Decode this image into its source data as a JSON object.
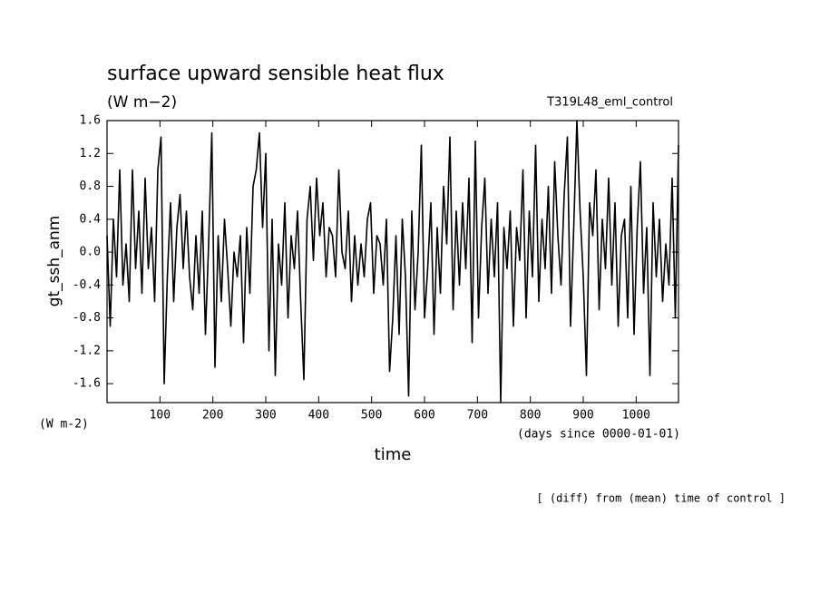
{
  "chart_data": {
    "type": "line",
    "title": "surface upward sensible heat flux",
    "subtitle": "(W m−2)",
    "run_label": "T319L48_eml_control",
    "y_label": "gt_ssh_anm",
    "y_unit": "(W m-2)",
    "x_unit": "(days since 0000-01-01)",
    "x_label": "time",
    "footnote": "[ (diff) from (mean) time of control ]",
    "color": "#000000",
    "xlim": [
      0,
      1080
    ],
    "ylim": [
      -1.83,
      1.6
    ],
    "xticks": [
      100,
      200,
      300,
      400,
      500,
      600,
      700,
      800,
      900,
      1000
    ],
    "yticks": [
      -1.6,
      -1.2,
      -0.8,
      -0.4,
      {
        "value": 0,
        "label": "0.0"
      },
      0.4,
      0.8,
      1.2,
      1.6
    ],
    "x": [
      0,
      6,
      12,
      18,
      24,
      30,
      36,
      42,
      48,
      54,
      60,
      66,
      72,
      78,
      84,
      90,
      96,
      102,
      108,
      114,
      120,
      126,
      132,
      138,
      144,
      150,
      156,
      162,
      168,
      174,
      180,
      186,
      192,
      198,
      204,
      210,
      216,
      222,
      228,
      234,
      240,
      246,
      252,
      258,
      264,
      270,
      276,
      282,
      288,
      294,
      300,
      306,
      312,
      318,
      324,
      330,
      336,
      342,
      348,
      354,
      360,
      366,
      372,
      378,
      384,
      390,
      396,
      402,
      408,
      414,
      420,
      426,
      432,
      438,
      444,
      450,
      456,
      462,
      468,
      474,
      480,
      486,
      492,
      498,
      504,
      510,
      516,
      522,
      528,
      534,
      540,
      546,
      552,
      558,
      564,
      570,
      576,
      582,
      588,
      594,
      600,
      606,
      612,
      618,
      624,
      630,
      636,
      642,
      648,
      654,
      660,
      666,
      672,
      678,
      684,
      690,
      696,
      702,
      708,
      714,
      720,
      726,
      732,
      738,
      744,
      750,
      756,
      762,
      768,
      774,
      780,
      786,
      792,
      798,
      804,
      810,
      816,
      822,
      828,
      834,
      840,
      846,
      852,
      858,
      864,
      870,
      876,
      882,
      888,
      894,
      900,
      906,
      912,
      918,
      924,
      930,
      936,
      942,
      948,
      954,
      960,
      966,
      972,
      978,
      984,
      990,
      996,
      1002,
      1008,
      1014,
      1020,
      1026,
      1032,
      1038,
      1044,
      1050,
      1056,
      1062,
      1068,
      1074,
      1080
    ],
    "values": [
      0.2,
      -0.9,
      0.4,
      -0.3,
      1.0,
      -0.4,
      0.1,
      -0.6,
      1.0,
      -0.2,
      0.5,
      -0.5,
      0.9,
      -0.2,
      0.3,
      -0.6,
      1.0,
      1.4,
      -1.6,
      -0.3,
      0.6,
      -0.6,
      0.3,
      0.7,
      -0.2,
      0.5,
      -0.3,
      -0.7,
      0.2,
      -0.5,
      0.5,
      -1.0,
      0.1,
      1.45,
      -1.4,
      0.2,
      -0.6,
      0.4,
      -0.2,
      -0.9,
      0.0,
      -0.3,
      0.2,
      -1.1,
      0.3,
      -0.5,
      0.8,
      1.0,
      1.45,
      0.3,
      1.2,
      -1.2,
      0.4,
      -1.5,
      0.1,
      -0.4,
      0.6,
      -0.8,
      0.2,
      -0.2,
      0.5,
      -0.6,
      -1.55,
      0.4,
      0.8,
      -0.1,
      0.9,
      0.2,
      0.6,
      -0.3,
      0.3,
      0.2,
      -0.3,
      1.0,
      0.0,
      -0.2,
      0.5,
      -0.6,
      0.2,
      -0.4,
      0.1,
      -0.3,
      0.4,
      0.6,
      -0.5,
      0.2,
      0.1,
      -0.4,
      0.4,
      -1.45,
      -0.8,
      0.2,
      -1.0,
      0.4,
      -0.3,
      -1.75,
      0.5,
      -0.7,
      0.0,
      1.3,
      -0.8,
      -0.2,
      0.6,
      -1.0,
      0.3,
      -0.5,
      0.8,
      0.1,
      1.4,
      -0.7,
      0.5,
      -0.4,
      0.6,
      -0.2,
      0.9,
      -1.1,
      1.35,
      -0.8,
      0.3,
      0.9,
      -0.5,
      0.4,
      -0.3,
      0.6,
      -1.83,
      0.3,
      -0.2,
      0.5,
      -0.9,
      0.3,
      -0.1,
      1.0,
      -0.8,
      0.5,
      -0.3,
      1.3,
      -0.6,
      0.4,
      -0.2,
      0.8,
      -0.5,
      1.1,
      0.2,
      -0.4,
      0.7,
      1.4,
      -0.9,
      0.3,
      1.6,
      0.5,
      -0.3,
      -1.5,
      0.6,
      0.2,
      1.0,
      -0.7,
      0.4,
      -0.2,
      0.9,
      -0.4,
      0.6,
      -0.9,
      0.2,
      0.4,
      -0.8,
      0.8,
      -1.0,
      0.3,
      1.1,
      -0.5,
      0.3,
      -1.5,
      0.6,
      -0.3,
      0.4,
      -0.6,
      0.1,
      -0.4,
      0.9,
      -0.8,
      1.3
    ]
  }
}
